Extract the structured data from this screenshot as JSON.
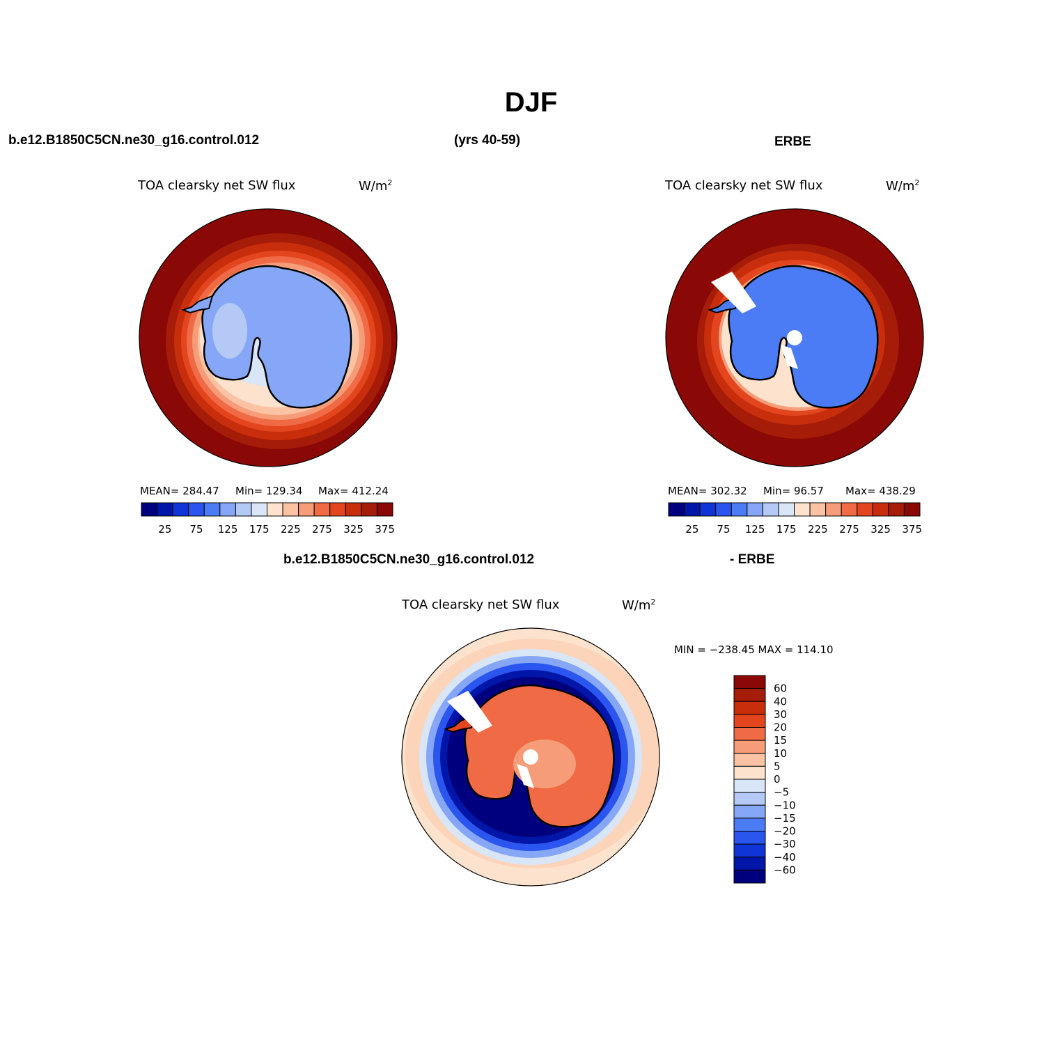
{
  "figure": {
    "season_title": "DJF",
    "case_name": "b.e12.B1850C5CN.ne30_g16.control.012",
    "years": "(yrs 40-59)",
    "obs_name": "ERBE",
    "diff_case_name": "b.e12.B1850C5CN.ne30_g16.control.012",
    "diff_suffix": "- ERBE"
  },
  "panels": {
    "model": {
      "variable": "TOA clearsky net SW flux",
      "units_base": "W/m",
      "units_exp": "2",
      "stats": {
        "mean": "MEAN= 284.47",
        "min": "Min= 129.34",
        "max": "Max= 412.24"
      }
    },
    "obs": {
      "variable": "TOA clearsky net SW flux",
      "units_base": "W/m",
      "units_exp": "2",
      "stats": {
        "mean": "MEAN= 302.32",
        "min": "Min=  96.57",
        "max": "Max= 438.29"
      }
    },
    "diff": {
      "variable": "TOA clearsky net SW flux",
      "units_base": "W/m",
      "units_exp": "2",
      "minmax": "MIN = −238.45 MAX = 114.10"
    }
  },
  "colorbars": {
    "abs_colors": [
      "#00007f",
      "#0016a8",
      "#0f35d6",
      "#2a55ee",
      "#4c7cf5",
      "#86a6f8",
      "#b5c9f7",
      "#d9e6f8",
      "#fde3cd",
      "#fbc2a3",
      "#f69c78",
      "#f06a45",
      "#e3461f",
      "#c82e0c",
      "#a51c08",
      "#8a0805"
    ],
    "abs_labels": [
      "25",
      "75",
      "125",
      "175",
      "225",
      "275",
      "325",
      "375"
    ],
    "diff_colors": [
      "#00007f",
      "#0016a8",
      "#0f35d6",
      "#2a55ee",
      "#4c7cf5",
      "#86a6f8",
      "#b5c9f7",
      "#d9e6f8",
      "#fde3cd",
      "#fbc2a3",
      "#f69c78",
      "#f06a45",
      "#e3461f",
      "#c82e0c",
      "#a51c08",
      "#8a0805"
    ],
    "diff_labels": [
      "−60",
      "−40",
      "−30",
      "−20",
      "−15",
      "−10",
      "−5",
      "0",
      "5",
      "10",
      "15",
      "20",
      "30",
      "40",
      "60"
    ]
  }
}
